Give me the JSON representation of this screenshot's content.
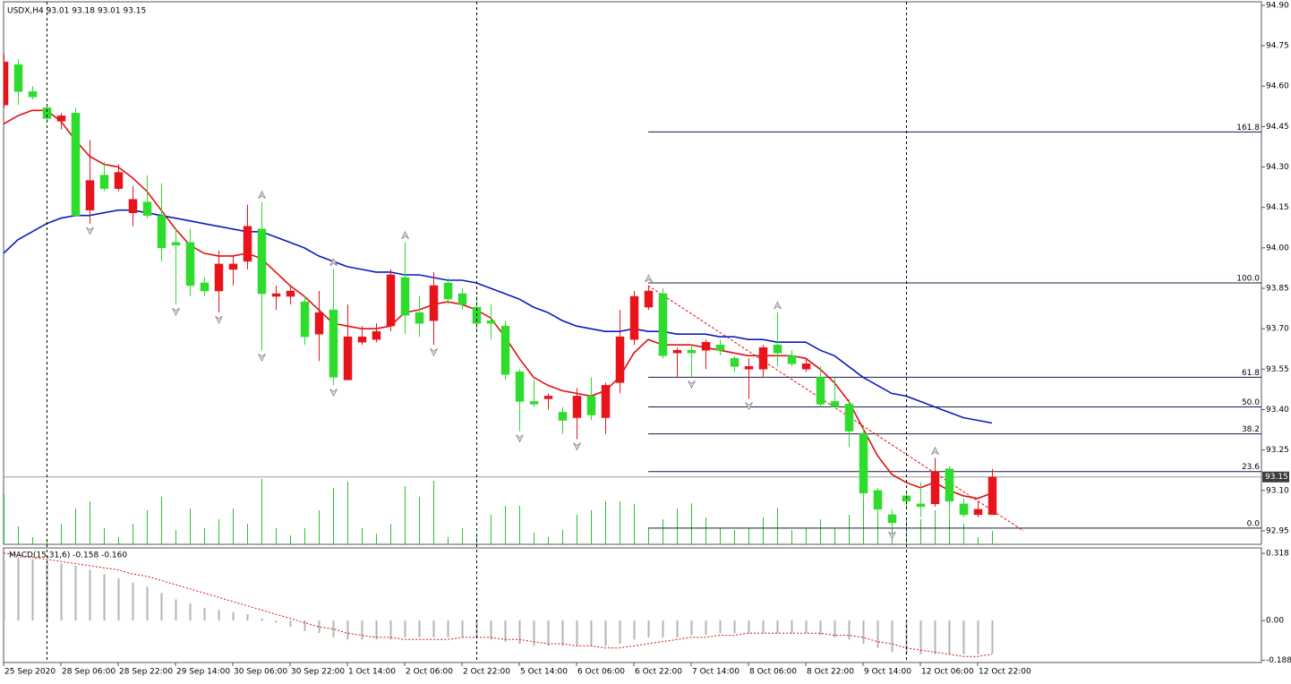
{
  "chart_data": {
    "type": "candlestick",
    "header": "USDX,H4  93.01 93.18 93.01 93.15",
    "up_color": "#e8141b",
    "down_color": "#2edc2e",
    "x": [
      "25 Sep 2020",
      null,
      null,
      null,
      "28 Sep 06:00",
      null,
      null,
      null,
      "28 Sep 22:00",
      null,
      null,
      null,
      "29 Sep 14:00",
      null,
      null,
      null,
      "30 Sep 06:00",
      null,
      null,
      null,
      "30 Sep 22:00",
      null,
      null,
      null,
      "1 Oct 14:00",
      null,
      null,
      null,
      "2 Oct 06:00",
      null,
      null,
      null,
      "2 Oct 22:00",
      null,
      null,
      null,
      "5 Oct 14:00",
      null,
      null,
      null,
      "6 Oct 06:00",
      null,
      null,
      null,
      "6 Oct 22:00",
      null,
      null,
      null,
      "7 Oct 14:00",
      null,
      null,
      null,
      "8 Oct 06:00",
      null,
      null,
      null,
      "8 Oct 22:00",
      null,
      null,
      null,
      "9 Oct 14:00",
      null,
      null,
      null,
      "12 Oct 06:00",
      null,
      null,
      null,
      "12 Oct 22:00",
      null
    ],
    "open": [
      94.53,
      94.68,
      94.58,
      94.52,
      94.47,
      94.5,
      94.14,
      94.27,
      94.22,
      94.13,
      94.17,
      94.12,
      94.02,
      94.02,
      93.87,
      93.84,
      93.92,
      93.95,
      94.07,
      93.82,
      93.82,
      93.8,
      93.68,
      93.77,
      93.51,
      93.65,
      93.66,
      93.71,
      93.89,
      93.76,
      93.73,
      93.87,
      93.83,
      93.78,
      93.73,
      93.71,
      93.54,
      93.43,
      93.44,
      93.39,
      93.37,
      93.45,
      93.37,
      93.5,
      93.66,
      93.78,
      93.83,
      93.61,
      93.62,
      93.62,
      93.64,
      93.59,
      93.55,
      93.55,
      93.64,
      93.6,
      93.55,
      93.52,
      93.43,
      93.42,
      93.31,
      93.1,
      93.01,
      93.08,
      93.05,
      93.05,
      93.18,
      93.05,
      93.01,
      93.01
    ],
    "high": [
      94.72,
      94.7,
      94.6,
      94.53,
      94.5,
      94.52,
      94.4,
      94.32,
      94.31,
      94.23,
      94.27,
      94.24,
      94.07,
      94.07,
      93.89,
      93.99,
      93.97,
      94.16,
      94.17,
      93.86,
      93.86,
      93.82,
      93.84,
      93.92,
      93.79,
      93.71,
      93.72,
      93.92,
      94.02,
      93.82,
      93.91,
      93.89,
      93.85,
      93.82,
      93.79,
      93.73,
      93.55,
      93.51,
      93.46,
      93.41,
      93.48,
      93.52,
      93.5,
      93.77,
      93.84,
      93.86,
      93.85,
      93.63,
      93.64,
      93.66,
      93.66,
      93.6,
      93.59,
      93.64,
      93.76,
      93.62,
      93.59,
      93.56,
      93.52,
      93.44,
      93.33,
      93.11,
      93.03,
      93.09,
      93.13,
      93.22,
      93.19,
      93.07,
      93.06,
      93.18
    ],
    "low": [
      94.52,
      94.53,
      94.55,
      94.47,
      94.44,
      94.12,
      94.09,
      94.21,
      94.21,
      94.08,
      94.11,
      93.95,
      93.79,
      93.82,
      93.82,
      93.76,
      93.86,
      93.92,
      93.62,
      93.77,
      93.79,
      93.64,
      93.58,
      93.49,
      93.51,
      93.64,
      93.65,
      93.69,
      93.68,
      93.67,
      93.64,
      93.79,
      93.77,
      93.69,
      93.66,
      93.51,
      93.32,
      93.41,
      93.4,
      93.31,
      93.29,
      93.36,
      93.31,
      93.46,
      93.64,
      93.77,
      93.59,
      93.52,
      93.52,
      93.55,
      93.6,
      93.54,
      93.44,
      93.52,
      93.56,
      93.56,
      93.54,
      93.41,
      93.41,
      93.26,
      93.06,
      93.01,
      92.96,
      93.04,
      93.0,
      93.04,
      92.99,
      93.0,
      93.0,
      93.01
    ],
    "close": [
      94.69,
      94.58,
      94.56,
      94.48,
      94.49,
      94.12,
      94.25,
      94.22,
      94.28,
      94.18,
      94.12,
      94.0,
      94.01,
      93.86,
      93.84,
      93.94,
      93.94,
      94.08,
      93.83,
      93.83,
      93.84,
      93.67,
      93.76,
      93.52,
      93.67,
      93.67,
      93.69,
      93.9,
      93.75,
      93.72,
      93.86,
      93.81,
      93.79,
      93.72,
      93.72,
      93.53,
      93.43,
      93.42,
      93.45,
      93.36,
      93.45,
      93.38,
      93.49,
      93.67,
      93.82,
      93.84,
      93.6,
      93.62,
      93.61,
      93.65,
      93.62,
      93.56,
      93.56,
      93.63,
      93.61,
      93.57,
      93.57,
      93.42,
      93.41,
      93.32,
      93.09,
      93.03,
      92.98,
      93.06,
      93.04,
      93.17,
      93.06,
      93.01,
      93.03,
      93.15
    ],
    "overlays": [
      {
        "color": "#e01010",
        "values": [
          94.46,
          94.49,
          94.51,
          94.51,
          94.47,
          94.4,
          94.34,
          94.31,
          94.3,
          94.26,
          94.21,
          94.14,
          94.07,
          94.01,
          93.98,
          93.97,
          93.97,
          93.98,
          93.96,
          93.91,
          93.86,
          93.82,
          93.77,
          93.72,
          93.71,
          93.7,
          93.7,
          93.71,
          93.76,
          93.77,
          93.79,
          93.8,
          93.79,
          93.77,
          93.74,
          93.67,
          93.59,
          93.52,
          93.49,
          93.47,
          93.46,
          93.45,
          93.47,
          93.52,
          93.61,
          93.66,
          93.64,
          93.64,
          93.64,
          93.63,
          93.62,
          93.61,
          93.6,
          93.6,
          93.6,
          93.6,
          93.59,
          93.55,
          93.5,
          93.43,
          93.33,
          93.23,
          93.16,
          93.13,
          93.11,
          93.13,
          93.1,
          93.08,
          93.07,
          93.09
        ]
      },
      {
        "color": "#0a1cbf",
        "values": [
          93.98,
          94.03,
          94.06,
          94.09,
          94.11,
          94.12,
          94.12,
          94.13,
          94.14,
          94.14,
          94.13,
          94.12,
          94.11,
          94.1,
          94.09,
          94.08,
          94.07,
          94.06,
          94.06,
          94.04,
          94.02,
          94.0,
          93.97,
          93.95,
          93.93,
          93.92,
          93.91,
          93.91,
          93.9,
          93.9,
          93.89,
          93.88,
          93.88,
          93.87,
          93.85,
          93.83,
          93.81,
          93.78,
          93.76,
          93.73,
          93.71,
          93.7,
          93.69,
          93.69,
          93.7,
          93.69,
          93.69,
          93.68,
          93.68,
          93.68,
          93.67,
          93.67,
          93.66,
          93.66,
          93.65,
          93.65,
          93.65,
          93.62,
          93.6,
          93.56,
          93.52,
          93.49,
          93.46,
          93.45,
          93.43,
          93.41,
          93.39,
          93.37,
          93.36,
          93.35
        ]
      }
    ],
    "volume_color": "#2ec02e",
    "volumes": [
      56,
      20,
      8,
      6,
      23,
      40,
      48,
      18,
      8,
      23,
      38,
      53,
      16,
      40,
      18,
      28,
      40,
      23,
      73,
      18,
      10,
      18,
      38,
      63,
      70,
      18,
      12,
      23,
      65,
      53,
      71,
      8,
      18,
      10,
      33,
      43,
      43,
      13,
      8,
      16,
      33,
      38,
      48,
      48,
      45,
      18,
      28,
      40,
      46,
      30,
      18,
      16,
      18,
      30,
      41,
      16,
      18,
      28,
      18,
      33,
      68,
      48,
      32,
      30,
      28,
      38,
      40,
      23,
      8,
      15
    ],
    "ylim": [
      92.9,
      94.913
    ],
    "yticks": [
      {
        "value": 94.9,
        "label": "94.90"
      },
      94.75,
      {
        "value": 94.6,
        "label": "94.60"
      },
      94.45,
      {
        "value": 94.3,
        "label": "94.30"
      },
      94.15,
      {
        "value": 94,
        "label": "94.00"
      },
      93.85,
      {
        "value": 93.7,
        "label": "93.70"
      },
      93.55,
      {
        "value": 93.4,
        "label": "93.40"
      },
      93.25,
      {
        "value": 93.1,
        "label": "93.10"
      },
      92.95
    ],
    "current_price": 93.15,
    "separators": [
      3,
      33,
      63
    ],
    "fractals_up": [
      18,
      23,
      28,
      45,
      54,
      65
    ],
    "fractals_down": [
      6,
      12,
      15,
      18,
      23,
      30,
      36,
      40,
      48,
      52,
      62
    ],
    "trendline": {
      "color": "#e01010",
      "x": [
        45,
        71.2
      ],
      "y": [
        93.86,
        92.95
      ]
    },
    "fib": {
      "start": 45,
      "color": "#1a1a4a",
      "levels": [
        {
          "label": "161.8",
          "price": 94.43
        },
        {
          "label": "100.0",
          "price": 93.87
        },
        {
          "label": "61.8",
          "price": 93.52
        },
        {
          "label": "50.0",
          "price": 93.41
        },
        {
          "label": "38.2",
          "price": 93.31
        },
        {
          "label": "23.6",
          "price": 93.17
        },
        {
          "label": "0.0",
          "price": 92.96
        }
      ]
    },
    "macd": {
      "title": "MACD(15,31,6) -0.158 -0.160",
      "hist_color": "#b4b4b4",
      "signal_color": "#e01010",
      "histogram": [
        0.29,
        0.3,
        0.29,
        0.28,
        0.27,
        0.26,
        0.24,
        0.22,
        0.2,
        0.18,
        0.16,
        0.13,
        0.1,
        0.08,
        0.06,
        0.05,
        0.04,
        0.03,
        0.01,
        -0.01,
        -0.03,
        -0.05,
        -0.06,
        -0.08,
        -0.09,
        -0.09,
        -0.09,
        -0.09,
        -0.08,
        -0.08,
        -0.08,
        -0.08,
        -0.08,
        -0.08,
        -0.09,
        -0.1,
        -0.11,
        -0.12,
        -0.12,
        -0.12,
        -0.12,
        -0.12,
        -0.12,
        -0.11,
        -0.09,
        -0.08,
        -0.08,
        -0.08,
        -0.07,
        -0.07,
        -0.06,
        -0.06,
        -0.06,
        -0.06,
        -0.06,
        -0.06,
        -0.06,
        -0.07,
        -0.08,
        -0.09,
        -0.11,
        -0.13,
        -0.15,
        -0.16,
        -0.16,
        -0.16,
        -0.16,
        -0.16,
        -0.16,
        -0.158
      ],
      "signal": [
        0.32,
        0.31,
        0.3,
        0.29,
        0.28,
        0.27,
        0.26,
        0.25,
        0.24,
        0.22,
        0.21,
        0.19,
        0.17,
        0.15,
        0.13,
        0.11,
        0.09,
        0.07,
        0.05,
        0.03,
        0.01,
        -0.01,
        -0.03,
        -0.04,
        -0.06,
        -0.07,
        -0.08,
        -0.08,
        -0.09,
        -0.09,
        -0.09,
        -0.09,
        -0.08,
        -0.08,
        -0.08,
        -0.09,
        -0.09,
        -0.1,
        -0.11,
        -0.11,
        -0.12,
        -0.12,
        -0.13,
        -0.13,
        -0.12,
        -0.11,
        -0.1,
        -0.09,
        -0.08,
        -0.08,
        -0.07,
        -0.07,
        -0.06,
        -0.06,
        -0.06,
        -0.06,
        -0.06,
        -0.06,
        -0.07,
        -0.07,
        -0.08,
        -0.1,
        -0.11,
        -0.13,
        -0.14,
        -0.15,
        -0.16,
        -0.17,
        -0.17,
        -0.16
      ],
      "ylim": [
        -0.199,
        0.344
      ],
      "yticks": [
        0.318,
        {
          "value": 0,
          "label": "0.00"
        },
        -0.188
      ]
    }
  }
}
